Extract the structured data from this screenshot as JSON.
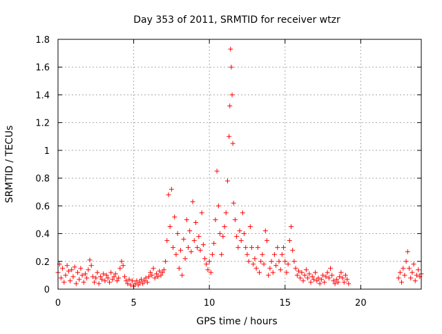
{
  "chart_data": {
    "type": "scatter",
    "title": "Day 353 of 2011, SRMTID for receiver wtzr",
    "xlabel": "GPS time / hours",
    "ylabel": "SRMTID / TECUs",
    "xlim": [
      0,
      24
    ],
    "ylim": [
      0,
      1.8
    ],
    "xticks": [
      0,
      5,
      10,
      15,
      20
    ],
    "yticks": [
      0,
      0.2,
      0.4,
      0.6,
      0.8,
      1,
      1.2,
      1.4,
      1.6,
      1.8
    ],
    "xtick_labels": [
      "0",
      "5",
      "10",
      "15",
      "20"
    ],
    "ytick_labels": [
      "0",
      "0.2",
      "0.4",
      "0.6",
      "0.8",
      "1",
      "1.2",
      "1.4",
      "1.6",
      "1.8"
    ],
    "grid": true,
    "marker": "+",
    "color": "#ff0000",
    "series": [
      {
        "name": "SRMTID",
        "points": [
          [
            0.0,
            0.12
          ],
          [
            0.1,
            0.18
          ],
          [
            0.2,
            0.08
          ],
          [
            0.3,
            0.15
          ],
          [
            0.4,
            0.05
          ],
          [
            0.5,
            0.1
          ],
          [
            0.6,
            0.17
          ],
          [
            0.7,
            0.13
          ],
          [
            0.8,
            0.06
          ],
          [
            0.9,
            0.14
          ],
          [
            1.0,
            0.09
          ],
          [
            1.1,
            0.16
          ],
          [
            1.2,
            0.04
          ],
          [
            1.3,
            0.12
          ],
          [
            1.4,
            0.07
          ],
          [
            1.5,
            0.15
          ],
          [
            1.6,
            0.1
          ],
          [
            1.7,
            0.05
          ],
          [
            1.8,
            0.11
          ],
          [
            1.9,
            0.08
          ],
          [
            2.0,
            0.14
          ],
          [
            2.1,
            0.21
          ],
          [
            2.2,
            0.17
          ],
          [
            2.3,
            0.09
          ],
          [
            2.4,
            0.05
          ],
          [
            2.5,
            0.08
          ],
          [
            2.6,
            0.12
          ],
          [
            2.7,
            0.04
          ],
          [
            2.8,
            0.09
          ],
          [
            2.9,
            0.07
          ],
          [
            3.0,
            0.11
          ],
          [
            3.1,
            0.06
          ],
          [
            3.2,
            0.1
          ],
          [
            3.3,
            0.08
          ],
          [
            3.4,
            0.05
          ],
          [
            3.5,
            0.12
          ],
          [
            3.6,
            0.07
          ],
          [
            3.7,
            0.09
          ],
          [
            3.8,
            0.11
          ],
          [
            3.9,
            0.06
          ],
          [
            4.0,
            0.08
          ],
          [
            4.1,
            0.15
          ],
          [
            4.2,
            0.2
          ],
          [
            4.3,
            0.17
          ],
          [
            4.4,
            0.09
          ],
          [
            4.5,
            0.06
          ],
          [
            4.6,
            0.04
          ],
          [
            4.7,
            0.07
          ],
          [
            4.8,
            0.03
          ],
          [
            4.9,
            0.06
          ],
          [
            5.0,
            0.02
          ],
          [
            5.1,
            0.04
          ],
          [
            5.2,
            0.06
          ],
          [
            5.3,
            0.03
          ],
          [
            5.4,
            0.05
          ],
          [
            5.5,
            0.07
          ],
          [
            5.6,
            0.04
          ],
          [
            5.7,
            0.06
          ],
          [
            5.8,
            0.08
          ],
          [
            5.9,
            0.05
          ],
          [
            6.0,
            0.09
          ],
          [
            6.1,
            0.12
          ],
          [
            6.2,
            0.1
          ],
          [
            6.3,
            0.15
          ],
          [
            6.4,
            0.08
          ],
          [
            6.5,
            0.11
          ],
          [
            6.6,
            0.09
          ],
          [
            6.7,
            0.13
          ],
          [
            6.8,
            0.1
          ],
          [
            6.9,
            0.12
          ],
          [
            7.0,
            0.14
          ],
          [
            7.1,
            0.2
          ],
          [
            7.2,
            0.35
          ],
          [
            7.3,
            0.68
          ],
          [
            7.4,
            0.45
          ],
          [
            7.5,
            0.72
          ],
          [
            7.6,
            0.3
          ],
          [
            7.7,
            0.52
          ],
          [
            7.8,
            0.25
          ],
          [
            7.9,
            0.4
          ],
          [
            8.0,
            0.15
          ],
          [
            8.1,
            0.28
          ],
          [
            8.2,
            0.1
          ],
          [
            8.3,
            0.36
          ],
          [
            8.4,
            0.22
          ],
          [
            8.5,
            0.5
          ],
          [
            8.6,
            0.3
          ],
          [
            8.7,
            0.42
          ],
          [
            8.8,
            0.27
          ],
          [
            8.9,
            0.63
          ],
          [
            9.0,
            0.35
          ],
          [
            9.1,
            0.48
          ],
          [
            9.2,
            0.3
          ],
          [
            9.3,
            0.38
          ],
          [
            9.4,
            0.28
          ],
          [
            9.5,
            0.55
          ],
          [
            9.6,
            0.32
          ],
          [
            9.7,
            0.22
          ],
          [
            9.8,
            0.18
          ],
          [
            9.9,
            0.14
          ],
          [
            10.0,
            0.2
          ],
          [
            10.1,
            0.12
          ],
          [
            10.2,
            0.25
          ],
          [
            10.3,
            0.33
          ],
          [
            10.4,
            0.5
          ],
          [
            10.5,
            0.85
          ],
          [
            10.6,
            0.6
          ],
          [
            10.7,
            0.4
          ],
          [
            10.8,
            0.25
          ],
          [
            10.9,
            0.38
          ],
          [
            11.0,
            0.45
          ],
          [
            11.1,
            0.55
          ],
          [
            11.2,
            0.78
          ],
          [
            11.3,
            1.1
          ],
          [
            11.35,
            1.32
          ],
          [
            11.4,
            1.73
          ],
          [
            11.45,
            1.6
          ],
          [
            11.5,
            1.4
          ],
          [
            11.55,
            1.05
          ],
          [
            11.6,
            0.62
          ],
          [
            11.7,
            0.5
          ],
          [
            11.8,
            0.38
          ],
          [
            11.9,
            0.3
          ],
          [
            12.0,
            0.42
          ],
          [
            12.1,
            0.35
          ],
          [
            12.2,
            0.55
          ],
          [
            12.3,
            0.4
          ],
          [
            12.4,
            0.3
          ],
          [
            12.5,
            0.25
          ],
          [
            12.6,
            0.2
          ],
          [
            12.7,
            0.45
          ],
          [
            12.8,
            0.3
          ],
          [
            12.9,
            0.18
          ],
          [
            13.0,
            0.22
          ],
          [
            13.1,
            0.15
          ],
          [
            13.2,
            0.3
          ],
          [
            13.3,
            0.12
          ],
          [
            13.4,
            0.2
          ],
          [
            13.5,
            0.25
          ],
          [
            13.6,
            0.18
          ],
          [
            13.7,
            0.42
          ],
          [
            13.8,
            0.35
          ],
          [
            13.9,
            0.1
          ],
          [
            14.0,
            0.15
          ],
          [
            14.1,
            0.2
          ],
          [
            14.2,
            0.12
          ],
          [
            14.3,
            0.25
          ],
          [
            14.4,
            0.17
          ],
          [
            14.5,
            0.3
          ],
          [
            14.6,
            0.2
          ],
          [
            14.7,
            0.14
          ],
          [
            14.8,
            0.25
          ],
          [
            14.9,
            0.3
          ],
          [
            15.0,
            0.2
          ],
          [
            15.1,
            0.12
          ],
          [
            15.2,
            0.18
          ],
          [
            15.3,
            0.35
          ],
          [
            15.4,
            0.45
          ],
          [
            15.5,
            0.28
          ],
          [
            15.6,
            0.2
          ],
          [
            15.7,
            0.15
          ],
          [
            15.8,
            0.1
          ],
          [
            15.9,
            0.13
          ],
          [
            16.0,
            0.08
          ],
          [
            16.1,
            0.12
          ],
          [
            16.2,
            0.06
          ],
          [
            16.3,
            0.1
          ],
          [
            16.4,
            0.14
          ],
          [
            16.5,
            0.08
          ],
          [
            16.6,
            0.11
          ],
          [
            16.7,
            0.05
          ],
          [
            16.8,
            0.09
          ],
          [
            16.9,
            0.07
          ],
          [
            17.0,
            0.12
          ],
          [
            17.1,
            0.06
          ],
          [
            17.2,
            0.08
          ],
          [
            17.3,
            0.04
          ],
          [
            17.4,
            0.07
          ],
          [
            17.5,
            0.1
          ],
          [
            17.6,
            0.05
          ],
          [
            17.7,
            0.09
          ],
          [
            17.8,
            0.12
          ],
          [
            17.9,
            0.08
          ],
          [
            18.0,
            0.15
          ],
          [
            18.1,
            0.1
          ],
          [
            18.2,
            0.06
          ],
          [
            18.3,
            0.04
          ],
          [
            18.4,
            0.07
          ],
          [
            18.5,
            0.05
          ],
          [
            18.6,
            0.09
          ],
          [
            18.7,
            0.12
          ],
          [
            18.8,
            0.08
          ],
          [
            18.9,
            0.05
          ],
          [
            19.0,
            0.1
          ],
          [
            19.1,
            0.07
          ],
          [
            19.2,
            0.04
          ],
          [
            22.5,
            0.08
          ],
          [
            22.6,
            0.12
          ],
          [
            22.7,
            0.05
          ],
          [
            22.8,
            0.15
          ],
          [
            22.9,
            0.1
          ],
          [
            23.0,
            0.2
          ],
          [
            23.1,
            0.27
          ],
          [
            23.2,
            0.15
          ],
          [
            23.3,
            0.08
          ],
          [
            23.4,
            0.12
          ],
          [
            23.5,
            0.18
          ],
          [
            23.6,
            0.06
          ],
          [
            23.7,
            0.1
          ],
          [
            23.8,
            0.14
          ],
          [
            23.9,
            0.09
          ],
          [
            24.0,
            0.11
          ]
        ]
      }
    ]
  }
}
